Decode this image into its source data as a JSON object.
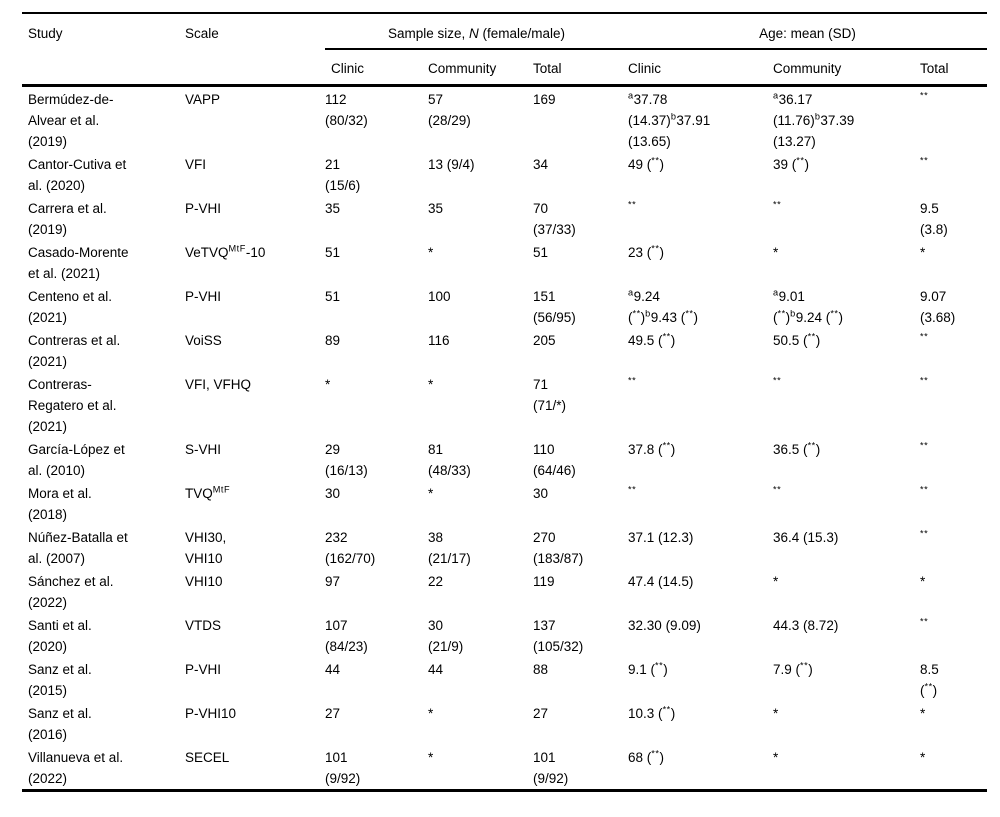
{
  "table": {
    "header": {
      "study": "Study",
      "scale": "Scale",
      "group_sample": "Sample size, ~{N} (female/male)",
      "group_age": "Age: mean (SD)",
      "sub": [
        "Clinic",
        "Community",
        "Total",
        "Clinic",
        "Community",
        "Total"
      ]
    },
    "rows": [
      {
        "study": "Bermúdez-de-\nAlvear et al.\n(2019)",
        "scale": "VAPP",
        "sample_clinic": "112\n(80/32)",
        "sample_community": "57\n(28/29)",
        "sample_total": "169",
        "age_clinic": "^{a}37.78\n(14.37)^{b}37.91\n(13.65)",
        "age_community": "^{a}36.17\n(11.76)^{b}37.39\n(13.27)",
        "age_total": "^{**}"
      },
      {
        "study": "Cantor-Cutiva et\nal. (2020)",
        "scale": "VFI",
        "sample_clinic": "21\n(15/6)",
        "sample_community": "13 (9/4)",
        "sample_total": "34",
        "age_clinic": "49 (^{**})",
        "age_community": "39 (^{**})",
        "age_total": "^{**}"
      },
      {
        "study": "Carrera et al.\n(2019)",
        "scale": "P-VHI",
        "sample_clinic": "35",
        "sample_community": "35",
        "sample_total": "70\n(37/33)",
        "age_clinic": "^{**}",
        "age_community": "^{**}",
        "age_total": "9.5\n(3.8)"
      },
      {
        "study": "Casado-Morente\net al. (2021)",
        "scale": "VeTVQ^{MtF}-10",
        "sample_clinic": "51",
        "sample_community": "*",
        "sample_total": "51",
        "age_clinic": "23 (^{**})",
        "age_community": "*",
        "age_total": "*"
      },
      {
        "study": "Centeno et al.\n(2021)",
        "scale": "P-VHI",
        "sample_clinic": "51",
        "sample_community": "100",
        "sample_total": "151\n(56/95)",
        "age_clinic": "^{a}9.24\n(^{**})^{b}9.43 (^{**})",
        "age_community": "^{a}9.01\n(^{**})^{b}9.24 (^{**})",
        "age_total": "9.07\n(3.68)"
      },
      {
        "study": "Contreras et al.\n(2021)",
        "scale": "VoiSS",
        "sample_clinic": "89",
        "sample_community": "116",
        "sample_total": "205",
        "age_clinic": "49.5 (^{**})",
        "age_community": "50.5 (^{**})",
        "age_total": "^{**}"
      },
      {
        "study": "Contreras-\nRegatero et al.\n(2021)",
        "scale": "VFI, VFHQ",
        "sample_clinic": "*",
        "sample_community": "*",
        "sample_total": "71\n(71/*)",
        "age_clinic": "^{**}",
        "age_community": "^{**}",
        "age_total": "^{**}"
      },
      {
        "study": "García-López et\nal. (2010)",
        "scale": "S-VHI",
        "sample_clinic": "29\n(16/13)",
        "sample_community": "81\n(48/33)",
        "sample_total": "110\n(64/46)",
        "age_clinic": "37.8 (^{**})",
        "age_community": "36.5 (^{**})",
        "age_total": "^{**}"
      },
      {
        "study": "Mora et al.\n(2018)",
        "scale": "TVQ^{MtF}",
        "sample_clinic": "30",
        "sample_community": "*",
        "sample_total": "30",
        "age_clinic": "^{**}",
        "age_community": "^{**}",
        "age_total": "^{**}"
      },
      {
        "study": "Núñez-Batalla et\nal. (2007)",
        "scale": "VHI30,\nVHI10",
        "sample_clinic": "232\n(162/70)",
        "sample_community": "38\n(21/17)",
        "sample_total": "270\n(183/87)",
        "age_clinic": "37.1 (12.3)",
        "age_community": "36.4 (15.3)",
        "age_total": "^{**}"
      },
      {
        "study": "Sánchez et al.\n(2022)",
        "scale": "VHI10",
        "sample_clinic": "97",
        "sample_community": "22",
        "sample_total": "119",
        "age_clinic": "47.4 (14.5)",
        "age_community": "*",
        "age_total": "*"
      },
      {
        "study": "Santi et al.\n(2020)",
        "scale": "VTDS",
        "sample_clinic": "107\n(84/23)",
        "sample_community": "30\n(21/9)",
        "sample_total": "137\n(105/32)",
        "age_clinic": "32.30 (9.09)",
        "age_community": "44.3 (8.72)",
        "age_total": "^{**}"
      },
      {
        "study": "Sanz et al.\n(2015)",
        "scale": "P-VHI",
        "sample_clinic": "44",
        "sample_community": "44",
        "sample_total": "88",
        "age_clinic": "9.1 (^{**})",
        "age_community": "7.9 (^{**})",
        "age_total": "8.5\n(^{**})"
      },
      {
        "study": "Sanz et al.\n(2016)",
        "scale": "P-VHI10",
        "sample_clinic": "27",
        "sample_community": "*",
        "sample_total": "27",
        "age_clinic": "10.3 (^{**})",
        "age_community": "*",
        "age_total": "*"
      },
      {
        "study": "Villanueva et al.\n(2022)",
        "scale": "SECEL",
        "sample_clinic": "101\n(9/92)",
        "sample_community": "*",
        "sample_total": "101\n(9/92)",
        "age_clinic": "68 (^{**})",
        "age_community": "*",
        "age_total": "*"
      }
    ]
  }
}
